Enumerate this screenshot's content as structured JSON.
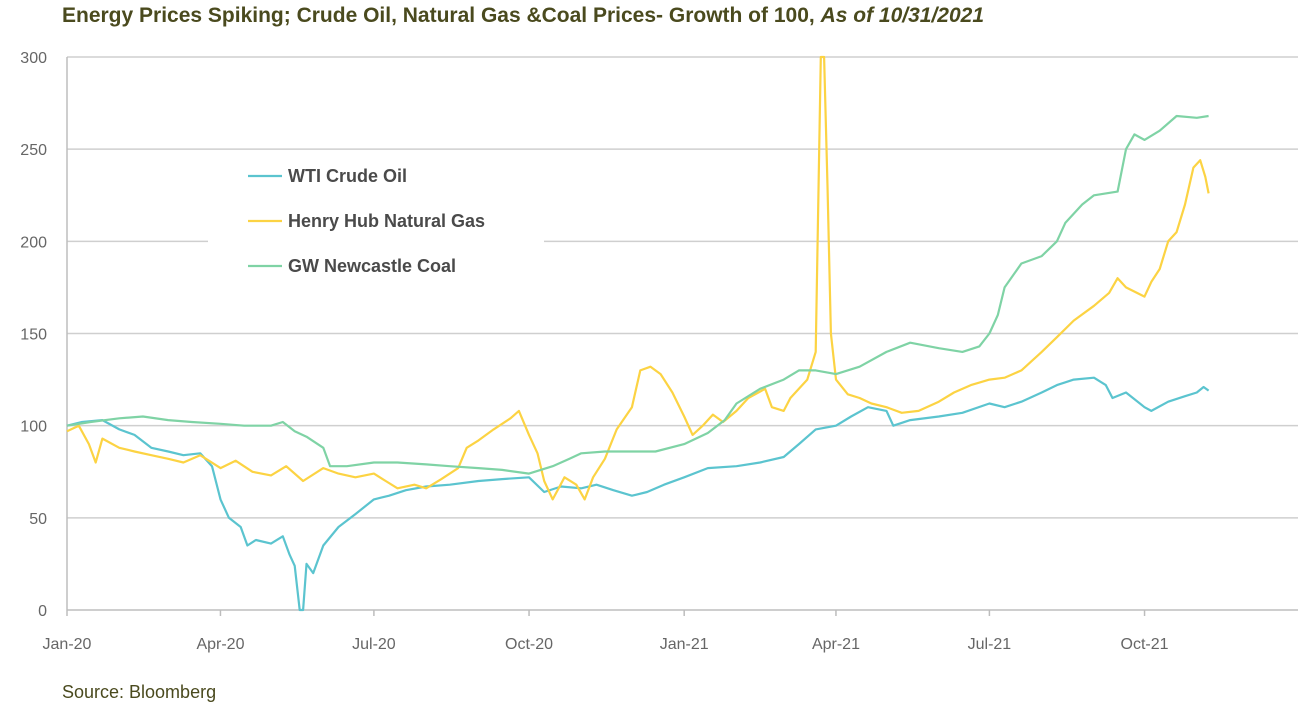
{
  "title": {
    "main": "Energy Prices Spiking; Crude Oil, Natural Gas &Coal Prices- Growth of 100,",
    "asof": "As of 10/31/2021"
  },
  "source": "Source: Bloomberg",
  "chart_data": {
    "type": "line",
    "title": "Energy Prices Spiking; Crude Oil, Natural Gas &Coal Prices- Growth of 100, As of 10/31/2021",
    "xlabel": "",
    "ylabel": "",
    "ylim": [
      0,
      300
    ],
    "xlim": [
      "2020-01-01",
      "2021-12-31"
    ],
    "yticks": [
      0,
      50,
      100,
      150,
      200,
      250,
      300
    ],
    "xticks": [
      {
        "label": "Jan-20",
        "date": "2020-01-01"
      },
      {
        "label": "Apr-20",
        "date": "2020-04-01"
      },
      {
        "label": "Jul-20",
        "date": "2020-07-01"
      },
      {
        "label": "Oct-20",
        "date": "2020-10-01"
      },
      {
        "label": "Jan-21",
        "date": "2021-01-01"
      },
      {
        "label": "Apr-21",
        "date": "2021-04-01"
      },
      {
        "label": "Jul-21",
        "date": "2021-07-01"
      },
      {
        "label": "Oct-21",
        "date": "2021-10-01"
      }
    ],
    "grid": "horizontal",
    "legend_position": "top-left",
    "series": [
      {
        "name": "WTI Crude Oil",
        "color": "#5bc4cf",
        "points": [
          [
            "2020-01-01",
            100
          ],
          [
            "2020-01-10",
            102
          ],
          [
            "2020-01-22",
            103
          ],
          [
            "2020-02-01",
            98
          ],
          [
            "2020-02-10",
            95
          ],
          [
            "2020-02-20",
            88
          ],
          [
            "2020-03-01",
            86
          ],
          [
            "2020-03-10",
            84
          ],
          [
            "2020-03-20",
            85
          ],
          [
            "2020-03-27",
            78
          ],
          [
            "2020-04-01",
            60
          ],
          [
            "2020-04-06",
            50
          ],
          [
            "2020-04-13",
            45
          ],
          [
            "2020-04-17",
            35
          ],
          [
            "2020-04-22",
            38
          ],
          [
            "2020-05-01",
            36
          ],
          [
            "2020-05-08",
            40
          ],
          [
            "2020-05-12",
            30
          ],
          [
            "2020-05-15",
            24
          ],
          [
            "2020-05-18",
            0
          ],
          [
            "2020-05-20",
            0
          ],
          [
            "2020-05-22",
            25
          ],
          [
            "2020-05-26",
            20
          ],
          [
            "2020-06-01",
            35
          ],
          [
            "2020-06-10",
            45
          ],
          [
            "2020-06-20",
            52
          ],
          [
            "2020-07-01",
            60
          ],
          [
            "2020-07-10",
            62
          ],
          [
            "2020-07-20",
            65
          ],
          [
            "2020-08-01",
            67
          ],
          [
            "2020-08-15",
            68
          ],
          [
            "2020-09-01",
            70
          ],
          [
            "2020-09-15",
            71
          ],
          [
            "2020-10-01",
            72
          ],
          [
            "2020-10-10",
            64
          ],
          [
            "2020-10-20",
            67
          ],
          [
            "2020-11-01",
            66
          ],
          [
            "2020-11-10",
            68
          ],
          [
            "2020-11-20",
            65
          ],
          [
            "2020-12-01",
            62
          ],
          [
            "2020-12-10",
            64
          ],
          [
            "2020-12-20",
            68
          ],
          [
            "2021-01-01",
            72
          ],
          [
            "2021-01-15",
            77
          ],
          [
            "2021-02-01",
            78
          ],
          [
            "2021-02-15",
            80
          ],
          [
            "2021-03-01",
            83
          ],
          [
            "2021-03-10",
            90
          ],
          [
            "2021-03-20",
            98
          ],
          [
            "2021-04-01",
            100
          ],
          [
            "2021-04-10",
            105
          ],
          [
            "2021-04-20",
            110
          ],
          [
            "2021-05-01",
            108
          ],
          [
            "2021-05-05",
            100
          ],
          [
            "2021-05-15",
            103
          ],
          [
            "2021-06-01",
            105
          ],
          [
            "2021-06-15",
            107
          ],
          [
            "2021-07-01",
            112
          ],
          [
            "2021-07-10",
            110
          ],
          [
            "2021-07-20",
            113
          ],
          [
            "2021-08-01",
            118
          ],
          [
            "2021-08-10",
            122
          ],
          [
            "2021-08-20",
            125
          ],
          [
            "2021-09-01",
            126
          ],
          [
            "2021-09-08",
            122
          ],
          [
            "2021-09-12",
            115
          ],
          [
            "2021-09-20",
            118
          ],
          [
            "2021-10-01",
            110
          ],
          [
            "2021-10-05",
            108
          ],
          [
            "2021-10-15",
            113
          ],
          [
            "2021-10-25",
            116
          ],
          [
            "2021-11-01",
            118
          ],
          [
            "2021-11-05",
            121
          ],
          [
            "2021-11-08",
            119
          ]
        ]
      },
      {
        "name": "Henry Hub Natural Gas",
        "color": "#fcd343",
        "points": [
          [
            "2020-01-01",
            97
          ],
          [
            "2020-01-08",
            100
          ],
          [
            "2020-01-14",
            90
          ],
          [
            "2020-01-18",
            80
          ],
          [
            "2020-01-22",
            93
          ],
          [
            "2020-02-01",
            88
          ],
          [
            "2020-02-10",
            86
          ],
          [
            "2020-02-20",
            84
          ],
          [
            "2020-03-01",
            82
          ],
          [
            "2020-03-10",
            80
          ],
          [
            "2020-03-20",
            84
          ],
          [
            "2020-04-01",
            77
          ],
          [
            "2020-04-10",
            81
          ],
          [
            "2020-04-20",
            75
          ],
          [
            "2020-05-01",
            73
          ],
          [
            "2020-05-10",
            78
          ],
          [
            "2020-05-20",
            70
          ],
          [
            "2020-06-01",
            77
          ],
          [
            "2020-06-10",
            74
          ],
          [
            "2020-06-20",
            72
          ],
          [
            "2020-07-01",
            74
          ],
          [
            "2020-07-08",
            70
          ],
          [
            "2020-07-15",
            66
          ],
          [
            "2020-07-25",
            68
          ],
          [
            "2020-08-01",
            66
          ],
          [
            "2020-08-10",
            71
          ],
          [
            "2020-08-20",
            77
          ],
          [
            "2020-08-25",
            88
          ],
          [
            "2020-09-01",
            92
          ],
          [
            "2020-09-10",
            98
          ],
          [
            "2020-09-20",
            104
          ],
          [
            "2020-09-25",
            108
          ],
          [
            "2020-10-01",
            95
          ],
          [
            "2020-10-06",
            85
          ],
          [
            "2020-10-10",
            70
          ],
          [
            "2020-10-15",
            60
          ],
          [
            "2020-10-22",
            72
          ],
          [
            "2020-10-29",
            68
          ],
          [
            "2020-11-03",
            60
          ],
          [
            "2020-11-08",
            72
          ],
          [
            "2020-11-15",
            82
          ],
          [
            "2020-11-22",
            98
          ],
          [
            "2020-12-01",
            110
          ],
          [
            "2020-12-06",
            130
          ],
          [
            "2020-12-12",
            132
          ],
          [
            "2020-12-18",
            128
          ],
          [
            "2020-12-25",
            118
          ],
          [
            "2021-01-01",
            105
          ],
          [
            "2021-01-06",
            95
          ],
          [
            "2021-01-12",
            100
          ],
          [
            "2021-01-18",
            106
          ],
          [
            "2021-01-24",
            102
          ],
          [
            "2021-02-01",
            108
          ],
          [
            "2021-02-08",
            115
          ],
          [
            "2021-02-14",
            118
          ],
          [
            "2021-02-18",
            120
          ],
          [
            "2021-02-22",
            110
          ],
          [
            "2021-03-01",
            108
          ],
          [
            "2021-03-05",
            115
          ],
          [
            "2021-03-10",
            120
          ],
          [
            "2021-03-15",
            125
          ],
          [
            "2021-03-20",
            140
          ],
          [
            "2021-03-23",
            300
          ],
          [
            "2021-03-25",
            300
          ],
          [
            "2021-03-27",
            230
          ],
          [
            "2021-03-29",
            150
          ],
          [
            "2021-04-01",
            125
          ],
          [
            "2021-04-08",
            117
          ],
          [
            "2021-04-15",
            115
          ],
          [
            "2021-04-22",
            112
          ],
          [
            "2021-05-01",
            110
          ],
          [
            "2021-05-10",
            107
          ],
          [
            "2021-05-20",
            108
          ],
          [
            "2021-06-01",
            113
          ],
          [
            "2021-06-10",
            118
          ],
          [
            "2021-06-20",
            122
          ],
          [
            "2021-07-01",
            125
          ],
          [
            "2021-07-10",
            126
          ],
          [
            "2021-07-20",
            130
          ],
          [
            "2021-08-01",
            140
          ],
          [
            "2021-08-10",
            148
          ],
          [
            "2021-08-20",
            157
          ],
          [
            "2021-09-01",
            165
          ],
          [
            "2021-09-10",
            172
          ],
          [
            "2021-09-15",
            180
          ],
          [
            "2021-09-20",
            175
          ],
          [
            "2021-10-01",
            170
          ],
          [
            "2021-10-05",
            178
          ],
          [
            "2021-10-10",
            185
          ],
          [
            "2021-10-15",
            200
          ],
          [
            "2021-10-20",
            205
          ],
          [
            "2021-10-25",
            220
          ],
          [
            "2021-10-30",
            240
          ],
          [
            "2021-11-03",
            244
          ],
          [
            "2021-11-06",
            235
          ],
          [
            "2021-11-08",
            226
          ]
        ]
      },
      {
        "name": "GW Newcastle Coal",
        "color": "#7fd3a5",
        "points": [
          [
            "2020-01-01",
            100
          ],
          [
            "2020-01-15",
            102
          ],
          [
            "2020-02-01",
            104
          ],
          [
            "2020-02-15",
            105
          ],
          [
            "2020-03-01",
            103
          ],
          [
            "2020-03-15",
            102
          ],
          [
            "2020-04-01",
            101
          ],
          [
            "2020-04-15",
            100
          ],
          [
            "2020-05-01",
            100
          ],
          [
            "2020-05-08",
            102
          ],
          [
            "2020-05-15",
            97
          ],
          [
            "2020-05-22",
            94
          ],
          [
            "2020-06-01",
            88
          ],
          [
            "2020-06-05",
            78
          ],
          [
            "2020-06-15",
            78
          ],
          [
            "2020-07-01",
            80
          ],
          [
            "2020-07-15",
            80
          ],
          [
            "2020-08-01",
            79
          ],
          [
            "2020-08-15",
            78
          ],
          [
            "2020-09-01",
            77
          ],
          [
            "2020-09-15",
            76
          ],
          [
            "2020-10-01",
            74
          ],
          [
            "2020-10-15",
            78
          ],
          [
            "2020-10-25",
            82
          ],
          [
            "2020-11-01",
            85
          ],
          [
            "2020-11-15",
            86
          ],
          [
            "2020-12-01",
            86
          ],
          [
            "2020-12-15",
            86
          ],
          [
            "2021-01-01",
            90
          ],
          [
            "2021-01-15",
            96
          ],
          [
            "2021-01-25",
            103
          ],
          [
            "2021-02-01",
            112
          ],
          [
            "2021-02-15",
            120
          ],
          [
            "2021-03-01",
            125
          ],
          [
            "2021-03-10",
            130
          ],
          [
            "2021-03-20",
            130
          ],
          [
            "2021-04-01",
            128
          ],
          [
            "2021-04-15",
            132
          ],
          [
            "2021-05-01",
            140
          ],
          [
            "2021-05-15",
            145
          ],
          [
            "2021-06-01",
            142
          ],
          [
            "2021-06-15",
            140
          ],
          [
            "2021-06-25",
            143
          ],
          [
            "2021-07-01",
            150
          ],
          [
            "2021-07-06",
            160
          ],
          [
            "2021-07-10",
            175
          ],
          [
            "2021-07-20",
            188
          ],
          [
            "2021-08-01",
            192
          ],
          [
            "2021-08-10",
            200
          ],
          [
            "2021-08-15",
            210
          ],
          [
            "2021-08-25",
            220
          ],
          [
            "2021-09-01",
            225
          ],
          [
            "2021-09-15",
            227
          ],
          [
            "2021-09-20",
            250
          ],
          [
            "2021-09-25",
            258
          ],
          [
            "2021-10-01",
            255
          ],
          [
            "2021-10-10",
            260
          ],
          [
            "2021-10-20",
            268
          ],
          [
            "2021-11-01",
            267
          ],
          [
            "2021-11-08",
            268
          ]
        ]
      }
    ]
  }
}
